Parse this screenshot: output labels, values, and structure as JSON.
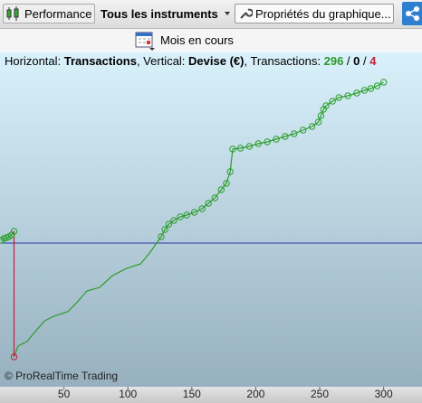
{
  "toolbar": {
    "performance": "Performance",
    "instruments": "Tous les instruments",
    "properties": "Propriétés du graphique..."
  },
  "period": "Mois en cours",
  "info": {
    "h_label": "Horizontal: ",
    "h_value": "Transactions",
    "v_label": ", Vertical: ",
    "v_value": "Devise (€)",
    "t_label": ", Transactions: ",
    "wins": 296,
    "separator": " / ",
    "neutral": 0,
    "losses": 4
  },
  "chart_data": {
    "type": "line",
    "watermark": "© ProRealTime Trading",
    "xlim": [
      0,
      330
    ],
    "ylim": [
      -160,
      195
    ],
    "xticks": [
      50,
      100,
      150,
      200,
      250,
      300
    ],
    "zero_line": {
      "value": 0,
      "color": "#2a35a8"
    },
    "series": [
      {
        "color": "#2e9a2e",
        "x": [
          1,
          3,
          5,
          7,
          9,
          11,
          11,
          11,
          14,
          21,
          27,
          35,
          42,
          53,
          60,
          68,
          78,
          88,
          99,
          110,
          117,
          126,
          129,
          132,
          136,
          141,
          146,
          152,
          158,
          163,
          168,
          173,
          177,
          180,
          182,
          188,
          195,
          202,
          209,
          216,
          223,
          230,
          237,
          244,
          249,
          251,
          253,
          255,
          260,
          265,
          272,
          279,
          285,
          290,
          295,
          300
        ],
        "values": [
          3,
          5,
          6,
          7,
          9,
          13,
          null,
          -126,
          -114,
          -109,
          -99,
          -86,
          -81,
          -76,
          -66,
          -53,
          -49,
          -36,
          -28,
          -23,
          -11,
          7,
          15,
          21,
          25,
          29,
          31,
          34,
          38,
          44,
          50,
          59,
          66,
          79,
          104,
          105,
          107,
          110,
          112,
          115,
          118,
          121,
          125,
          129,
          134,
          141,
          148,
          152,
          157,
          161,
          163,
          166,
          169,
          171,
          174,
          178
        ]
      },
      {
        "color": "#c0203a",
        "x": [
          11,
          11
        ],
        "values": [
          13,
          -126
        ]
      }
    ],
    "markers": [
      {
        "color": "#2aa02a",
        "x": [
          1,
          3,
          5,
          7,
          9,
          11,
          126,
          129,
          132,
          136,
          141,
          146,
          152,
          158,
          163,
          168,
          173,
          177,
          180,
          182,
          188,
          195,
          202,
          209,
          216,
          223,
          230,
          237,
          244,
          249,
          251,
          253,
          255,
          260,
          265,
          272,
          279,
          285,
          290,
          295,
          300
        ],
        "values": [
          3,
          5,
          6,
          7,
          9,
          13,
          7,
          15,
          21,
          25,
          29,
          31,
          34,
          38,
          44,
          50,
          59,
          66,
          79,
          104,
          105,
          107,
          110,
          112,
          115,
          118,
          121,
          125,
          129,
          134,
          141,
          148,
          152,
          157,
          161,
          163,
          166,
          169,
          171,
          174,
          178
        ]
      },
      {
        "color": "#c0203a",
        "x": [
          11
        ],
        "values": [
          -126
        ]
      }
    ]
  }
}
